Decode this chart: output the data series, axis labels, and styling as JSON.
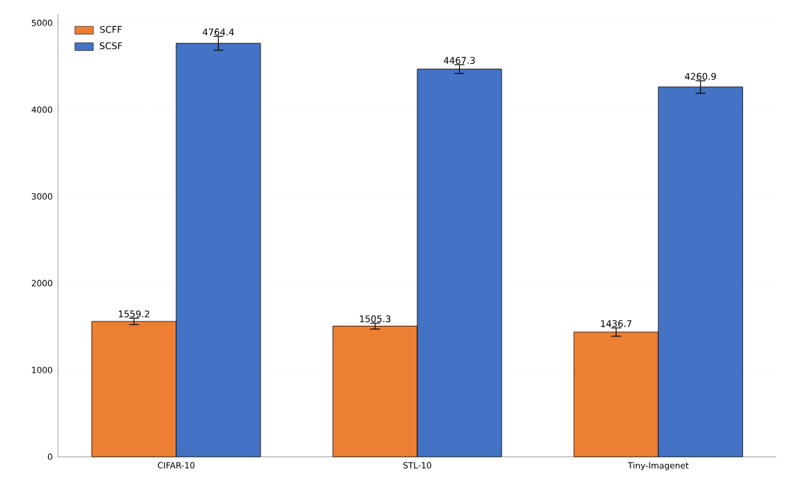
{
  "chart_data": {
    "type": "bar",
    "categories": [
      "CIFAR-10",
      "STL-10",
      "Tiny-Imagenet"
    ],
    "series": [
      {
        "name": "SCFF",
        "color": "#ed7f33",
        "values": [
          1559.2,
          1505.3,
          1436.7
        ],
        "errors": [
          37,
          34,
          48
        ]
      },
      {
        "name": "SCSF",
        "color": "#4472c4",
        "values": [
          4764.4,
          4467.3,
          4260.9
        ],
        "errors": [
          80,
          50,
          72
        ]
      }
    ],
    "ylim": [
      0,
      5100
    ],
    "yticks": [
      0,
      1000,
      2000,
      3000,
      4000,
      5000
    ],
    "grid": "y",
    "legend": "top left",
    "data_labels": true
  }
}
